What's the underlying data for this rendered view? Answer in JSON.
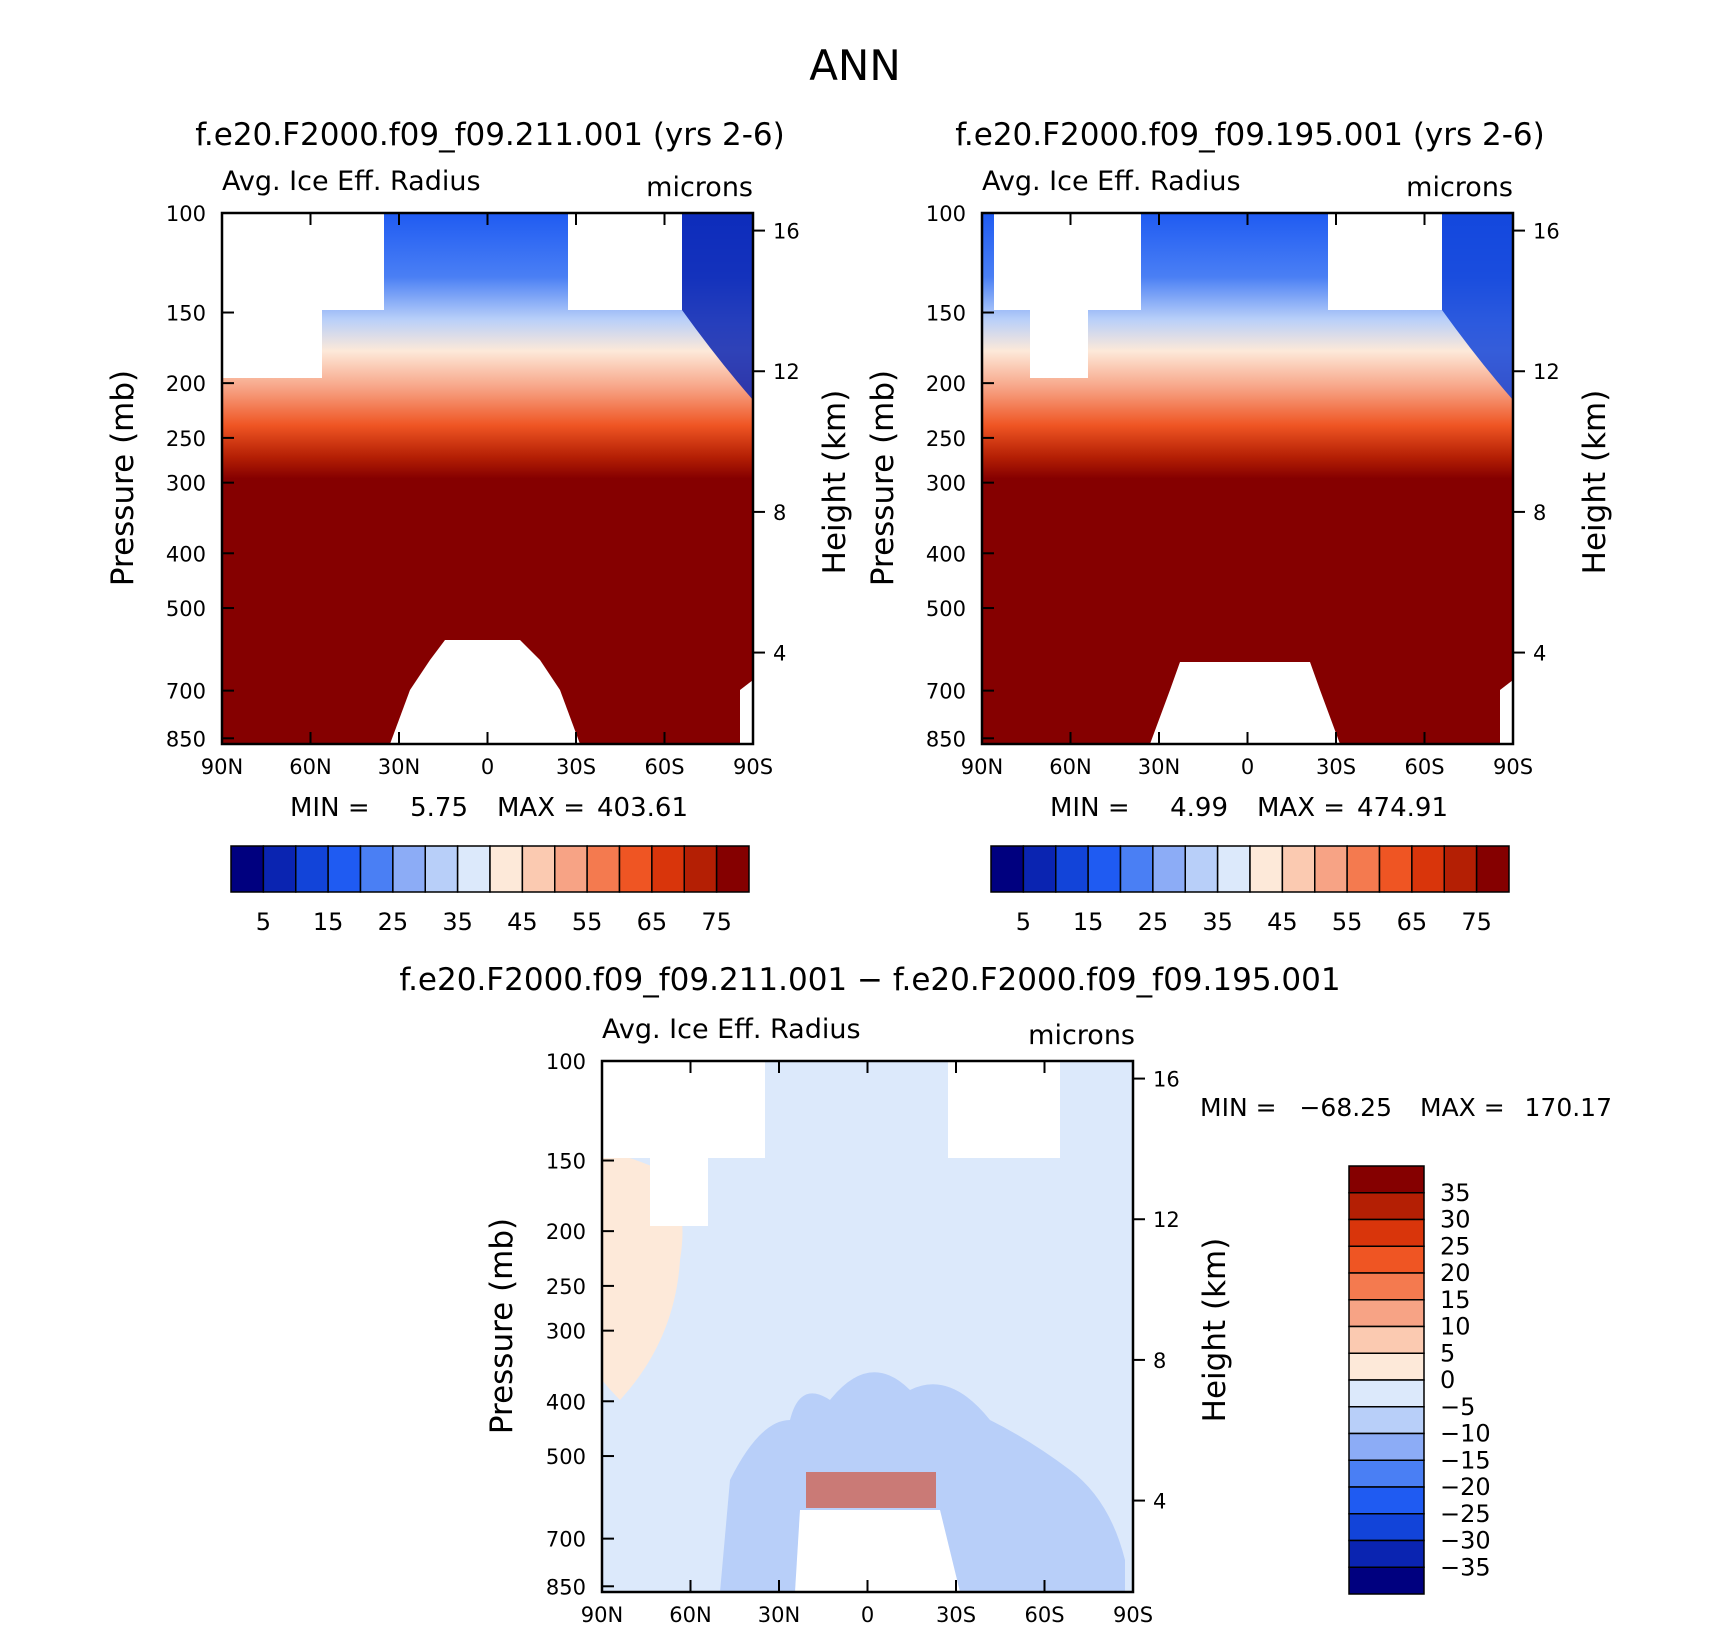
{
  "page_title": "ANN",
  "colors": {
    "abs": [
      "#00007f",
      "#0a24b1",
      "#1244d9",
      "#1f5bf2",
      "#4a7ff4",
      "#8cacf6",
      "#b8cff9",
      "#dce9fb",
      "#fde9d9",
      "#fbcab1",
      "#f7a385",
      "#f47a4f",
      "#ef5523",
      "#d9350b",
      "#b41f04",
      "#850000"
    ],
    "diff": [
      "#00007f",
      "#0a24b1",
      "#1244d9",
      "#1f5bf2",
      "#4a7ff4",
      "#8cacf6",
      "#b8cff9",
      "#dce9fb",
      "#fde9d9",
      "#fbcab1",
      "#f7a385",
      "#f47a4f",
      "#ef5523",
      "#d9350b",
      "#b41f04",
      "#850000"
    ]
  },
  "chart_data": [
    {
      "type": "heatmap",
      "title": "f.e20.F2000.f09_f09.211.001 (yrs 2-6)",
      "subtitle_left": "Avg. Ice Eff. Radius",
      "subtitle_right": "microns",
      "xlabel": "",
      "ylabel": "Pressure (mb)",
      "ylabel_right": "Height (km)",
      "x_ticks": [
        "90N",
        "60N",
        "30N",
        "0",
        "30S",
        "60S",
        "90S"
      ],
      "y_ticks": [
        "100",
        "150",
        "200",
        "250",
        "300",
        "400",
        "500",
        "700",
        "850"
      ],
      "y_ticks_right": [
        "16",
        "12",
        "8",
        "4"
      ],
      "min_label": "MIN =",
      "min_value": "5.75",
      "max_label": "MAX =",
      "max_value": "403.61",
      "colorbar_labels": [
        "5",
        "15",
        "25",
        "35",
        "45",
        "55",
        "65",
        "75"
      ],
      "colorbar_levels": [
        0,
        5,
        10,
        15,
        20,
        25,
        30,
        35,
        40,
        45,
        50,
        55,
        60,
        65,
        70,
        75
      ]
    },
    {
      "type": "heatmap",
      "title": "f.e20.F2000.f09_f09.195.001 (yrs 2-6)",
      "subtitle_left": "Avg. Ice Eff. Radius",
      "subtitle_right": "microns",
      "xlabel": "",
      "ylabel": "Pressure (mb)",
      "ylabel_right": "Height (km)",
      "x_ticks": [
        "90N",
        "60N",
        "30N",
        "0",
        "30S",
        "60S",
        "90S"
      ],
      "y_ticks": [
        "100",
        "150",
        "200",
        "250",
        "300",
        "400",
        "500",
        "700",
        "850"
      ],
      "y_ticks_right": [
        "16",
        "12",
        "8",
        "4"
      ],
      "min_label": "MIN =",
      "min_value": "4.99",
      "max_label": "MAX =",
      "max_value": "474.91",
      "colorbar_labels": [
        "5",
        "15",
        "25",
        "35",
        "45",
        "55",
        "65",
        "75"
      ],
      "colorbar_levels": [
        0,
        5,
        10,
        15,
        20,
        25,
        30,
        35,
        40,
        45,
        50,
        55,
        60,
        65,
        70,
        75
      ]
    },
    {
      "type": "heatmap",
      "title": "f.e20.F2000.f09_f09.211.001 − f.e20.F2000.f09_f09.195.001",
      "subtitle_left": "Avg. Ice Eff. Radius",
      "subtitle_right": "microns",
      "xlabel": "",
      "ylabel": "Pressure (mb)",
      "ylabel_right": "Height (km)",
      "x_ticks": [
        "90N",
        "60N",
        "30N",
        "0",
        "30S",
        "60S",
        "90S"
      ],
      "y_ticks": [
        "100",
        "150",
        "200",
        "250",
        "300",
        "400",
        "500",
        "700",
        "850"
      ],
      "y_ticks_right": [
        "16",
        "12",
        "8",
        "4"
      ],
      "min_label": "MIN =",
      "min_value": "−68.25",
      "max_label": "MAX =",
      "max_value": "170.17",
      "colorbar_labels": [
        "35",
        "30",
        "25",
        "20",
        "15",
        "10",
        "5",
        "0",
        "−5",
        "−10",
        "−15",
        "−20",
        "−25",
        "−30",
        "−35"
      ],
      "colorbar_levels": [
        35,
        30,
        25,
        20,
        15,
        10,
        5,
        0,
        -5,
        -10,
        -15,
        -20,
        -25,
        -30,
        -35
      ]
    }
  ]
}
